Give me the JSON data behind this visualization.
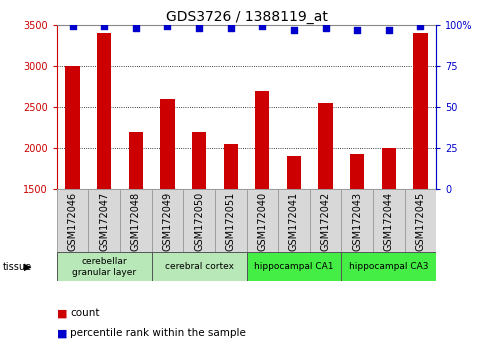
{
  "title": "GDS3726 / 1388119_at",
  "samples": [
    "GSM172046",
    "GSM172047",
    "GSM172048",
    "GSM172049",
    "GSM172050",
    "GSM172051",
    "GSM172040",
    "GSM172041",
    "GSM172042",
    "GSM172043",
    "GSM172044",
    "GSM172045"
  ],
  "counts": [
    3000,
    3400,
    2200,
    2600,
    2200,
    2050,
    2700,
    1900,
    2550,
    1930,
    2000,
    3400
  ],
  "percentiles": [
    99,
    99,
    98,
    99,
    98,
    98,
    99,
    97,
    98,
    97,
    97,
    99
  ],
  "ymin": 1500,
  "ymax": 3500,
  "yticks": [
    1500,
    2000,
    2500,
    3000,
    3500
  ],
  "right_yticks": [
    0,
    25,
    50,
    75,
    100
  ],
  "bar_color": "#cc0000",
  "dot_color": "#0000cc",
  "tissue_groups": [
    {
      "label": "cerebellar\ngranular layer",
      "start": 0,
      "end": 3,
      "color": "#b8e8b8"
    },
    {
      "label": "cerebral cortex",
      "start": 3,
      "end": 6,
      "color": "#b8e8b8"
    },
    {
      "label": "hippocampal CA1",
      "start": 6,
      "end": 9,
      "color": "#44ee44"
    },
    {
      "label": "hippocampal CA3",
      "start": 9,
      "end": 12,
      "color": "#44ee44"
    }
  ],
  "left_axis_color": "#cc0000",
  "right_axis_color": "#0000cc",
  "title_fontsize": 10,
  "tick_fontsize": 7,
  "bar_width": 0.45,
  "sample_box_color": "#d8d8d8",
  "plot_bg": "#ffffff"
}
